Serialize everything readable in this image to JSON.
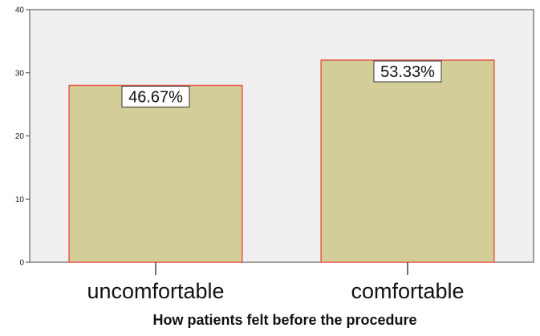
{
  "chart_data": {
    "type": "bar",
    "categories": [
      "uncomfortable",
      "comfortable"
    ],
    "values": [
      28,
      32
    ],
    "data_labels": [
      "46.67%",
      "53.33%"
    ],
    "xlabel": "How patients felt before the procedure",
    "ylabel": "",
    "ylim": [
      0,
      40
    ],
    "yticks": [
      "0",
      "10",
      "20",
      "30",
      "40"
    ],
    "grid": false,
    "colors": {
      "plot_background": "#efefef",
      "bar_fill": "#d3ce97",
      "bar_stroke": "#e8564a",
      "axis": "#444444"
    }
  }
}
